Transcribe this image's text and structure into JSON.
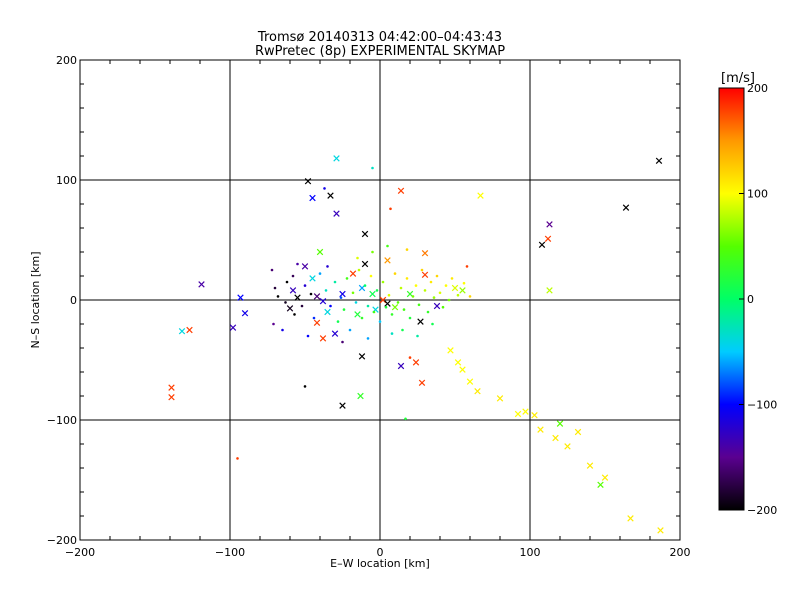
{
  "chart_data": {
    "type": "scatter",
    "title": "Tromsø 20140313 04:42:00–04:43:43",
    "subtitle": "RwPretec (8p) EXPERIMENTAL SKYMAP",
    "xlabel": "E–W location [km]",
    "ylabel": "N–S location [km]",
    "xlim": [
      -200,
      200
    ],
    "ylim": [
      -200,
      200
    ],
    "xticks": [
      -200,
      -100,
      0,
      100,
      200
    ],
    "yticks": [
      -200,
      -100,
      0,
      100,
      200
    ],
    "xtick_labels": [
      "−200",
      "−100",
      "0",
      "100",
      "200"
    ],
    "ytick_labels": [
      "−200",
      "−100",
      "0",
      "100",
      "200"
    ],
    "grid": true,
    "colorbar": {
      "label": "[m/s]",
      "range": [
        -200,
        200
      ],
      "ticks": [
        -200,
        -100,
        0,
        100,
        200
      ],
      "tick_labels": [
        "−200",
        "−100",
        "0",
        "100",
        "200"
      ],
      "colors": [
        "#000000",
        "#5a0090",
        "#0000ff",
        "#00ccff",
        "#00ff66",
        "#55ff00",
        "#ffff00",
        "#ff9900",
        "#ff0000"
      ]
    },
    "points": [
      {
        "x": -48,
        "y": 99,
        "v": -200,
        "m": "x"
      },
      {
        "x": -33,
        "y": 87,
        "v": -200,
        "m": "x"
      },
      {
        "x": -37,
        "y": 93,
        "v": -110,
        "m": "."
      },
      {
        "x": -45,
        "y": 85,
        "v": -100,
        "m": "x"
      },
      {
        "x": -29,
        "y": 72,
        "v": -130,
        "m": "x"
      },
      {
        "x": -29,
        "y": 118,
        "v": -40,
        "m": "x"
      },
      {
        "x": -5,
        "y": 110,
        "v": -30,
        "m": "."
      },
      {
        "x": 14,
        "y": 91,
        "v": 180,
        "m": "x"
      },
      {
        "x": 7,
        "y": 76,
        "v": 180,
        "m": "."
      },
      {
        "x": -10,
        "y": 55,
        "v": -200,
        "m": "x"
      },
      {
        "x": 186,
        "y": 116,
        "v": -200,
        "m": "x"
      },
      {
        "x": 164,
        "y": 77,
        "v": -200,
        "m": "x"
      },
      {
        "x": 113,
        "y": 63,
        "v": -150,
        "m": "x"
      },
      {
        "x": 112,
        "y": 51,
        "v": 180,
        "m": "x"
      },
      {
        "x": 108,
        "y": 46,
        "v": -200,
        "m": "x"
      },
      {
        "x": 113,
        "y": 8,
        "v": 80,
        "m": "x"
      },
      {
        "x": 67,
        "y": 87,
        "v": 100,
        "m": "x"
      },
      {
        "x": -119,
        "y": 13,
        "v": -140,
        "m": "x"
      },
      {
        "x": -93,
        "y": 2,
        "v": -100,
        "m": "x"
      },
      {
        "x": -90,
        "y": -11,
        "v": -110,
        "m": "x"
      },
      {
        "x": -98,
        "y": -23,
        "v": -130,
        "m": "x"
      },
      {
        "x": -127,
        "y": -25,
        "v": 180,
        "m": "x"
      },
      {
        "x": -132,
        "y": -26,
        "v": -40,
        "m": "x"
      },
      {
        "x": -139,
        "y": -73,
        "v": 180,
        "m": "x"
      },
      {
        "x": -139,
        "y": -81,
        "v": 180,
        "m": "x"
      },
      {
        "x": -95,
        "y": -132,
        "v": 180,
        "m": "."
      },
      {
        "x": -25,
        "y": -88,
        "v": -200,
        "m": "x"
      },
      {
        "x": -13,
        "y": -80,
        "v": 30,
        "m": "x"
      },
      {
        "x": -12,
        "y": -47,
        "v": -200,
        "m": "x"
      },
      {
        "x": -50,
        "y": -72,
        "v": -200,
        "m": "."
      },
      {
        "x": 17,
        "y": -99,
        "v": 20,
        "m": "."
      },
      {
        "x": 14,
        "y": -55,
        "v": -130,
        "m": "x"
      },
      {
        "x": 24,
        "y": -52,
        "v": 180,
        "m": "x"
      },
      {
        "x": 20,
        "y": -48,
        "v": 180,
        "m": "."
      },
      {
        "x": 28,
        "y": -69,
        "v": 180,
        "m": "x"
      },
      {
        "x": 27,
        "y": -18,
        "v": -200,
        "m": "x"
      },
      {
        "x": 38,
        "y": -5,
        "v": -130,
        "m": "x"
      },
      {
        "x": 30,
        "y": 21,
        "v": 180,
        "m": "x"
      },
      {
        "x": 30,
        "y": 39,
        "v": 160,
        "m": "x"
      },
      {
        "x": 5,
        "y": 33,
        "v": 150,
        "m": "x"
      },
      {
        "x": 58,
        "y": 28,
        "v": 180,
        "m": "."
      },
      {
        "x": 47,
        "y": -42,
        "v": 100,
        "m": "x"
      },
      {
        "x": 52,
        "y": -52,
        "v": 100,
        "m": "x"
      },
      {
        "x": 55,
        "y": -58,
        "v": 100,
        "m": "x"
      },
      {
        "x": 60,
        "y": -68,
        "v": 100,
        "m": "x"
      },
      {
        "x": 65,
        "y": -76,
        "v": 110,
        "m": "x"
      },
      {
        "x": 80,
        "y": -82,
        "v": 110,
        "m": "x"
      },
      {
        "x": 92,
        "y": -95,
        "v": 100,
        "m": "x"
      },
      {
        "x": 97,
        "y": -93,
        "v": 100,
        "m": "x"
      },
      {
        "x": 103,
        "y": -96,
        "v": 110,
        "m": "x"
      },
      {
        "x": 107,
        "y": -108,
        "v": 110,
        "m": "x"
      },
      {
        "x": 120,
        "y": -103,
        "v": 50,
        "m": "x"
      },
      {
        "x": 117,
        "y": -115,
        "v": 110,
        "m": "x"
      },
      {
        "x": 132,
        "y": -110,
        "v": 110,
        "m": "x"
      },
      {
        "x": 125,
        "y": -122,
        "v": 110,
        "m": "x"
      },
      {
        "x": 140,
        "y": -138,
        "v": 110,
        "m": "x"
      },
      {
        "x": 150,
        "y": -148,
        "v": 110,
        "m": "x"
      },
      {
        "x": 147,
        "y": -154,
        "v": 50,
        "m": "x"
      },
      {
        "x": 167,
        "y": -182,
        "v": 110,
        "m": "x"
      },
      {
        "x": 187,
        "y": -192,
        "v": 110,
        "m": "x"
      },
      {
        "x": -55,
        "y": 2,
        "v": -200,
        "m": "x"
      },
      {
        "x": -58,
        "y": 8,
        "v": -130,
        "m": "x"
      },
      {
        "x": -42,
        "y": 3,
        "v": -160,
        "m": "x"
      },
      {
        "x": -38,
        "y": -1,
        "v": -120,
        "m": "x"
      },
      {
        "x": -35,
        "y": -10,
        "v": -40,
        "m": "x"
      },
      {
        "x": -42,
        "y": -19,
        "v": 180,
        "m": "x"
      },
      {
        "x": -38,
        "y": -32,
        "v": 180,
        "m": "x"
      },
      {
        "x": -30,
        "y": -28,
        "v": -120,
        "m": "x"
      },
      {
        "x": -15,
        "y": -12,
        "v": 20,
        "m": "x"
      },
      {
        "x": -10,
        "y": 30,
        "v": -200,
        "m": "x"
      },
      {
        "x": -18,
        "y": 22,
        "v": 180,
        "m": "x"
      },
      {
        "x": -25,
        "y": 5,
        "v": -110,
        "m": "x"
      },
      {
        "x": -12,
        "y": 10,
        "v": -60,
        "m": "x"
      },
      {
        "x": -3,
        "y": -8,
        "v": -40,
        "m": "x"
      },
      {
        "x": 2,
        "y": 0,
        "v": 180,
        "m": "x"
      },
      {
        "x": 5,
        "y": -3,
        "v": -200,
        "m": "x"
      },
      {
        "x": 10,
        "y": -6,
        "v": 60,
        "m": "x"
      },
      {
        "x": -5,
        "y": 5,
        "v": 10,
        "m": "x"
      },
      {
        "x": 20,
        "y": 5,
        "v": 30,
        "m": "x"
      },
      {
        "x": 50,
        "y": 10,
        "v": 90,
        "m": "x"
      },
      {
        "x": 55,
        "y": 8,
        "v": 70,
        "m": "x"
      },
      {
        "x": -60,
        "y": -7,
        "v": -190,
        "m": "x"
      },
      {
        "x": -50,
        "y": 28,
        "v": -140,
        "m": "x"
      },
      {
        "x": -45,
        "y": 18,
        "v": -40,
        "m": "x"
      },
      {
        "x": -40,
        "y": 40,
        "v": 50,
        "m": "x"
      },
      {
        "x": -68,
        "y": 3,
        "v": -200,
        "m": "."
      },
      {
        "x": -70,
        "y": 10,
        "v": -180,
        "m": "."
      },
      {
        "x": -72,
        "y": 25,
        "v": -160,
        "m": "."
      },
      {
        "x": -71,
        "y": -20,
        "v": -150,
        "m": "."
      },
      {
        "x": -65,
        "y": -25,
        "v": -110,
        "m": "."
      },
      {
        "x": -62,
        "y": 15,
        "v": -200,
        "m": "."
      },
      {
        "x": -63,
        "y": -2,
        "v": -190,
        "m": "."
      },
      {
        "x": -58,
        "y": 20,
        "v": -170,
        "m": "."
      },
      {
        "x": -57,
        "y": -12,
        "v": -200,
        "m": "."
      },
      {
        "x": -55,
        "y": 30,
        "v": -140,
        "m": "."
      },
      {
        "x": -52,
        "y": -5,
        "v": -180,
        "m": "."
      },
      {
        "x": -50,
        "y": 12,
        "v": -120,
        "m": "."
      },
      {
        "x": -48,
        "y": -30,
        "v": -100,
        "m": "."
      },
      {
        "x": -46,
        "y": 5,
        "v": -200,
        "m": "."
      },
      {
        "x": -44,
        "y": -15,
        "v": -90,
        "m": "."
      },
      {
        "x": -40,
        "y": 22,
        "v": -60,
        "m": "."
      },
      {
        "x": -36,
        "y": 8,
        "v": -30,
        "m": "."
      },
      {
        "x": -33,
        "y": -5,
        "v": -100,
        "m": "."
      },
      {
        "x": -30,
        "y": 15,
        "v": -20,
        "m": "."
      },
      {
        "x": -28,
        "y": -18,
        "v": 10,
        "m": "."
      },
      {
        "x": -26,
        "y": 2,
        "v": -80,
        "m": "."
      },
      {
        "x": -24,
        "y": -8,
        "v": 20,
        "m": "."
      },
      {
        "x": -22,
        "y": 18,
        "v": 40,
        "m": "."
      },
      {
        "x": -20,
        "y": -25,
        "v": -60,
        "m": "."
      },
      {
        "x": -18,
        "y": 6,
        "v": 60,
        "m": "."
      },
      {
        "x": -16,
        "y": -2,
        "v": -40,
        "m": "."
      },
      {
        "x": -14,
        "y": 25,
        "v": 80,
        "m": "."
      },
      {
        "x": -12,
        "y": -15,
        "v": 30,
        "m": "."
      },
      {
        "x": -10,
        "y": 12,
        "v": 0,
        "m": "."
      },
      {
        "x": -8,
        "y": -5,
        "v": -20,
        "m": "."
      },
      {
        "x": -6,
        "y": 20,
        "v": 100,
        "m": "."
      },
      {
        "x": -4,
        "y": -10,
        "v": 40,
        "m": "."
      },
      {
        "x": -2,
        "y": 8,
        "v": 10,
        "m": "."
      },
      {
        "x": 0,
        "y": -18,
        "v": -50,
        "m": "."
      },
      {
        "x": 2,
        "y": 15,
        "v": 70,
        "m": "."
      },
      {
        "x": 4,
        "y": -6,
        "v": 20,
        "m": "."
      },
      {
        "x": 6,
        "y": 4,
        "v": 90,
        "m": "."
      },
      {
        "x": 8,
        "y": -12,
        "v": 30,
        "m": "."
      },
      {
        "x": 10,
        "y": 22,
        "v": 120,
        "m": "."
      },
      {
        "x": 12,
        "y": -2,
        "v": 50,
        "m": "."
      },
      {
        "x": 14,
        "y": 10,
        "v": 80,
        "m": "."
      },
      {
        "x": 16,
        "y": -8,
        "v": 40,
        "m": "."
      },
      {
        "x": 18,
        "y": 18,
        "v": 110,
        "m": "."
      },
      {
        "x": 20,
        "y": -15,
        "v": 20,
        "m": "."
      },
      {
        "x": 22,
        "y": 3,
        "v": 60,
        "m": "."
      },
      {
        "x": 24,
        "y": 12,
        "v": 100,
        "m": "."
      },
      {
        "x": 26,
        "y": -4,
        "v": 40,
        "m": "."
      },
      {
        "x": 28,
        "y": 25,
        "v": 120,
        "m": "."
      },
      {
        "x": 30,
        "y": 8,
        "v": 80,
        "m": "."
      },
      {
        "x": 32,
        "y": -10,
        "v": 30,
        "m": "."
      },
      {
        "x": 34,
        "y": 15,
        "v": 110,
        "m": "."
      },
      {
        "x": 36,
        "y": 2,
        "v": 70,
        "m": "."
      },
      {
        "x": 38,
        "y": 20,
        "v": 120,
        "m": "."
      },
      {
        "x": 40,
        "y": 6,
        "v": 90,
        "m": "."
      },
      {
        "x": 42,
        "y": -6,
        "v": 50,
        "m": "."
      },
      {
        "x": 44,
        "y": 12,
        "v": 100,
        "m": "."
      },
      {
        "x": 46,
        "y": 0,
        "v": 60,
        "m": "."
      },
      {
        "x": 48,
        "y": 18,
        "v": 110,
        "m": "."
      },
      {
        "x": 52,
        "y": 4,
        "v": 80,
        "m": "."
      },
      {
        "x": 56,
        "y": 14,
        "v": 100,
        "m": "."
      },
      {
        "x": 60,
        "y": 3,
        "v": 120,
        "m": "."
      },
      {
        "x": -15,
        "y": 35,
        "v": 90,
        "m": "."
      },
      {
        "x": -5,
        "y": 40,
        "v": 60,
        "m": "."
      },
      {
        "x": 5,
        "y": 45,
        "v": 40,
        "m": "."
      },
      {
        "x": 18,
        "y": 42,
        "v": 120,
        "m": "."
      },
      {
        "x": 8,
        "y": -28,
        "v": -30,
        "m": "."
      },
      {
        "x": -8,
        "y": -32,
        "v": -60,
        "m": "."
      },
      {
        "x": 15,
        "y": -25,
        "v": 10,
        "m": "."
      },
      {
        "x": -35,
        "y": 28,
        "v": -120,
        "m": "."
      },
      {
        "x": -25,
        "y": -35,
        "v": -160,
        "m": "."
      },
      {
        "x": 25,
        "y": -30,
        "v": -20,
        "m": "."
      },
      {
        "x": 35,
        "y": -20,
        "v": 10,
        "m": "."
      }
    ]
  }
}
